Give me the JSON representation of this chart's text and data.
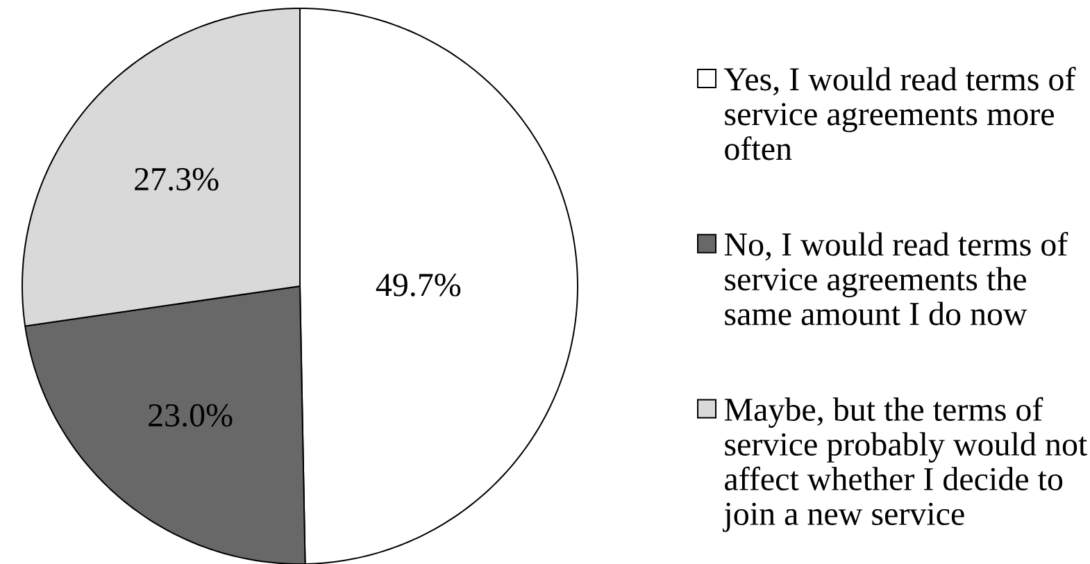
{
  "chart_data": {
    "type": "pie",
    "categories": [
      "Yes, I would read terms of service agreements more often",
      "No, I would read terms of service agreements the same amount I do now",
      "Maybe, but the terms of service probably would not affect whether I decide to join a new service"
    ],
    "values": [
      49.7,
      23.0,
      27.3
    ],
    "value_labels": [
      "49.7%",
      "23.0%",
      "27.3%"
    ],
    "colors": [
      "#ffffff",
      "#686868",
      "#d9d9d9"
    ],
    "legend": "right"
  }
}
